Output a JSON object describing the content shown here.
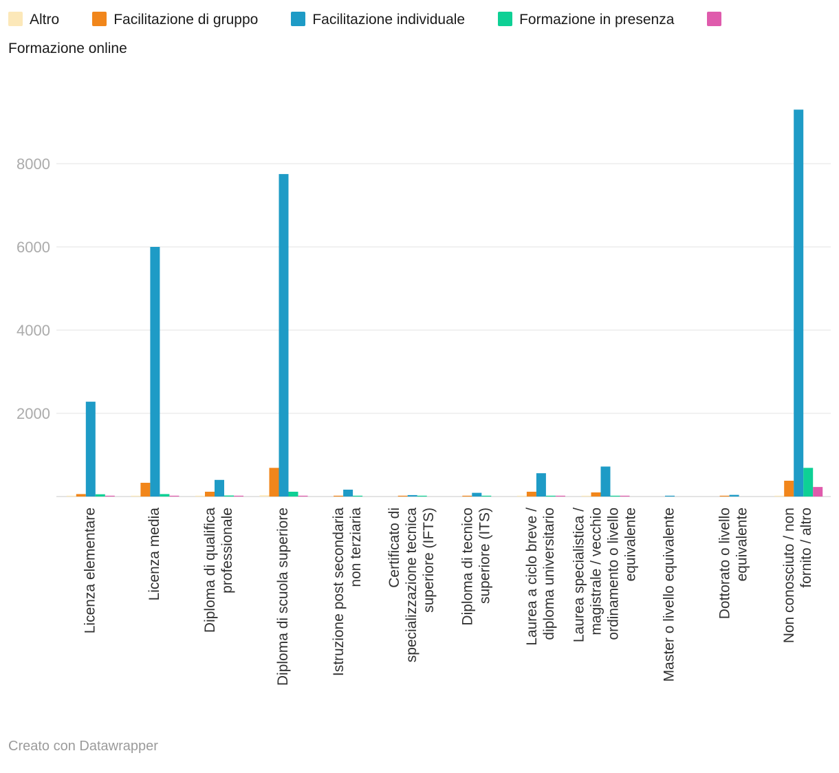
{
  "chart_data": {
    "type": "bar",
    "title": "",
    "xlabel": "",
    "ylabel": "",
    "ylim": [
      0,
      9600
    ],
    "yticks": [
      2000,
      4000,
      6000,
      8000
    ],
    "grid": "horizontal",
    "legend_position": "top",
    "categories": [
      "Licenza elementare",
      "Licenza media",
      "Diploma di qualifica professionale",
      "Diploma di scuola superiore",
      "Istruzione post secondaria non terziaria",
      "Certificato di specializzazione tecnica superiore (IFTS)",
      "Diploma di tecnico superiore (ITS)",
      "Laurea a ciclo breve / diploma universitario",
      "Laurea specialistica / magistrale / vecchio ordinamento o livello equivalente",
      "Master o livello equivalente",
      "Dottorato o livello equivalente",
      "Non conosciuto / non fornito / altro"
    ],
    "category_label_lines": [
      [
        "Licenza elementare"
      ],
      [
        "Licenza media"
      ],
      [
        "Diploma di qualifica",
        "professionale"
      ],
      [
        "Diploma di scuola superiore"
      ],
      [
        "Istruzione post secondaria",
        "non terziaria"
      ],
      [
        "Certificato di",
        "specializzazione tecnica",
        "superiore (IFTS)"
      ],
      [
        "Diploma di tecnico",
        "superiore (ITS)"
      ],
      [
        "Laurea a ciclo breve /",
        "diploma universitario"
      ],
      [
        "Laurea specialistica /",
        "magistrale / vecchio",
        "ordinamento o livello",
        "equivalente"
      ],
      [
        "Master o livello equivalente"
      ],
      [
        "Dottorato o livello",
        "equivalente"
      ],
      [
        "Non conosciuto / non",
        "fornito / altro"
      ]
    ],
    "series": [
      {
        "name": "Altro",
        "color": "#FCE8B9",
        "values": [
          15,
          10,
          5,
          30,
          0,
          0,
          0,
          5,
          5,
          0,
          0,
          20
        ]
      },
      {
        "name": "Facilitazione di gruppo",
        "color": "#F1861B",
        "values": [
          60,
          330,
          115,
          690,
          10,
          5,
          5,
          115,
          100,
          0,
          5,
          380
        ]
      },
      {
        "name": "Facilitazione individuale",
        "color": "#1E9BC6",
        "values": [
          2280,
          6000,
          400,
          7750,
          165,
          35,
          90,
          560,
          720,
          10,
          40,
          9300
        ]
      },
      {
        "name": "Formazione in presenza",
        "color": "#0ED095",
        "values": [
          55,
          60,
          25,
          115,
          5,
          3,
          5,
          15,
          20,
          0,
          0,
          690
        ]
      },
      {
        "name": "Formazione online",
        "color": "#DF5BAC",
        "values": [
          5,
          5,
          3,
          10,
          0,
          0,
          0,
          5,
          5,
          0,
          0,
          230
        ]
      }
    ]
  },
  "footer": {
    "text": "Creato con Datawrapper"
  }
}
